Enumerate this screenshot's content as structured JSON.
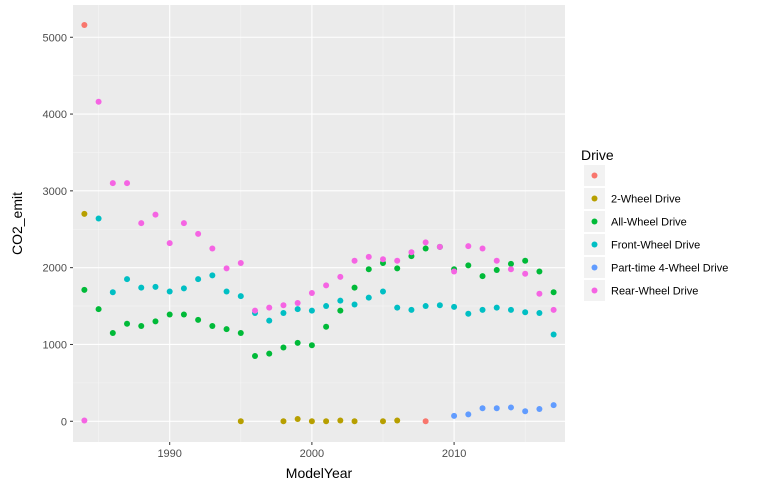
{
  "chart_data": {
    "type": "scatter",
    "xlabel": "ModelYear",
    "ylabel": "CO2_emit",
    "xlim": [
      1983.2,
      2017.8
    ],
    "ylim": [
      -270,
      5420
    ],
    "x_ticks": [
      1990,
      2000,
      2010
    ],
    "y_ticks": [
      0,
      1000,
      2000,
      3000,
      4000,
      5000
    ],
    "x_tick_labels": [
      "1990",
      "2000",
      "2010"
    ],
    "y_tick_labels": [
      "0",
      "1000",
      "2000",
      "3000",
      "4000",
      "5000"
    ],
    "grid": true,
    "legend": {
      "title": "Drive",
      "position": "right"
    },
    "colors": {
      "panel_background": "#ebebeb",
      "grid_major": "#ffffff",
      "grid_minor": "#f5f5f5",
      "legend_key_background": "#f2f2f2"
    },
    "series": [
      {
        "name": "",
        "color": "#f8766d",
        "points": [
          [
            1984,
            5160
          ],
          [
            2008,
            0
          ]
        ]
      },
      {
        "name": "2-Wheel Drive",
        "color": "#b79f00",
        "points": [
          [
            1984,
            2700
          ],
          [
            1995,
            0
          ],
          [
            1998,
            0
          ],
          [
            1999,
            30
          ],
          [
            2000,
            0
          ],
          [
            2001,
            0
          ],
          [
            2002,
            10
          ],
          [
            2003,
            0
          ],
          [
            2005,
            0
          ],
          [
            2006,
            10
          ]
        ]
      },
      {
        "name": "All-Wheel Drive",
        "color": "#00ba38",
        "points": [
          [
            1984,
            1710
          ],
          [
            1985,
            1460
          ],
          [
            1986,
            1150
          ],
          [
            1987,
            1270
          ],
          [
            1988,
            1240
          ],
          [
            1989,
            1300
          ],
          [
            1990,
            1390
          ],
          [
            1991,
            1390
          ],
          [
            1992,
            1320
          ],
          [
            1993,
            1240
          ],
          [
            1994,
            1200
          ],
          [
            1995,
            1150
          ],
          [
            1996,
            850
          ],
          [
            1997,
            880
          ],
          [
            1998,
            960
          ],
          [
            1999,
            1020
          ],
          [
            2000,
            990
          ],
          [
            2001,
            1230
          ],
          [
            2002,
            1440
          ],
          [
            2003,
            1740
          ],
          [
            2004,
            1980
          ],
          [
            2005,
            2060
          ],
          [
            2006,
            1990
          ],
          [
            2007,
            2150
          ],
          [
            2008,
            2250
          ],
          [
            2009,
            2270
          ],
          [
            2010,
            1980
          ],
          [
            2011,
            2030
          ],
          [
            2012,
            1890
          ],
          [
            2013,
            1970
          ],
          [
            2014,
            2050
          ],
          [
            2015,
            2090
          ],
          [
            2016,
            1950
          ],
          [
            2017,
            1680
          ]
        ]
      },
      {
        "name": "Front-Wheel Drive",
        "color": "#00bfc4",
        "points": [
          [
            1985,
            2640
          ],
          [
            1986,
            1680
          ],
          [
            1987,
            1850
          ],
          [
            1988,
            1740
          ],
          [
            1989,
            1750
          ],
          [
            1990,
            1690
          ],
          [
            1991,
            1730
          ],
          [
            1992,
            1850
          ],
          [
            1993,
            1900
          ],
          [
            1994,
            1690
          ],
          [
            1995,
            1630
          ],
          [
            1996,
            1410
          ],
          [
            1997,
            1310
          ],
          [
            1998,
            1410
          ],
          [
            1999,
            1460
          ],
          [
            2000,
            1440
          ],
          [
            2001,
            1500
          ],
          [
            2002,
            1570
          ],
          [
            2003,
            1520
          ],
          [
            2004,
            1610
          ],
          [
            2005,
            1690
          ],
          [
            2006,
            1480
          ],
          [
            2007,
            1450
          ],
          [
            2008,
            1500
          ],
          [
            2009,
            1510
          ],
          [
            2010,
            1490
          ],
          [
            2011,
            1400
          ],
          [
            2012,
            1450
          ],
          [
            2013,
            1480
          ],
          [
            2014,
            1450
          ],
          [
            2015,
            1420
          ],
          [
            2016,
            1410
          ],
          [
            2017,
            1130
          ]
        ]
      },
      {
        "name": "Part-time 4-Wheel Drive",
        "color": "#619cff",
        "points": [
          [
            2010,
            70
          ],
          [
            2011,
            90
          ],
          [
            2012,
            170
          ],
          [
            2013,
            170
          ],
          [
            2014,
            180
          ],
          [
            2015,
            130
          ],
          [
            2016,
            160
          ],
          [
            2017,
            210
          ]
        ]
      },
      {
        "name": "Rear-Wheel Drive",
        "color": "#f564e3",
        "points": [
          [
            1984,
            10
          ],
          [
            1985,
            4160
          ],
          [
            1986,
            3100
          ],
          [
            1987,
            3100
          ],
          [
            1988,
            2580
          ],
          [
            1989,
            2690
          ],
          [
            1990,
            2320
          ],
          [
            1991,
            2580
          ],
          [
            1992,
            2440
          ],
          [
            1993,
            2250
          ],
          [
            1994,
            1990
          ],
          [
            1995,
            2060
          ],
          [
            1996,
            1440
          ],
          [
            1997,
            1480
          ],
          [
            1998,
            1510
          ],
          [
            1999,
            1540
          ],
          [
            2000,
            1670
          ],
          [
            2001,
            1770
          ],
          [
            2002,
            1880
          ],
          [
            2003,
            2090
          ],
          [
            2004,
            2140
          ],
          [
            2005,
            2110
          ],
          [
            2006,
            2090
          ],
          [
            2007,
            2200
          ],
          [
            2008,
            2330
          ],
          [
            2009,
            2270
          ],
          [
            2010,
            1950
          ],
          [
            2011,
            2280
          ],
          [
            2012,
            2250
          ],
          [
            2013,
            2090
          ],
          [
            2014,
            1980
          ],
          [
            2015,
            1920
          ],
          [
            2016,
            1660
          ],
          [
            2017,
            1450
          ]
        ]
      }
    ]
  }
}
